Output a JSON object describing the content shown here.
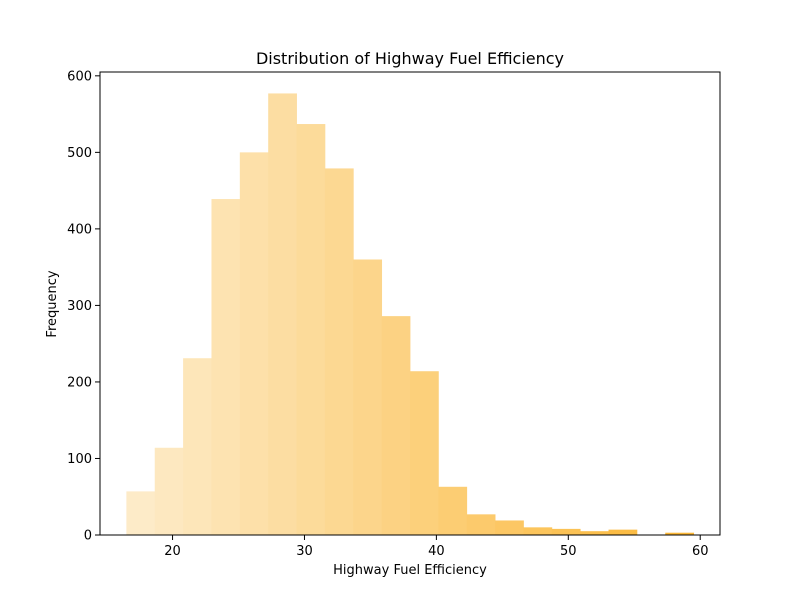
{
  "chart_data": {
    "type": "bar",
    "title": "Distribution of Highway Fuel Efficiency",
    "xlabel": "Highway Fuel Efficiency",
    "ylabel": "Frequency",
    "xlim": [
      14.5,
      61.5
    ],
    "ylim": [
      0,
      605
    ],
    "x_ticks": [
      20,
      30,
      40,
      50,
      60
    ],
    "y_ticks": [
      0,
      100,
      200,
      300,
      400,
      500,
      600
    ],
    "bin_width": 2.15,
    "bins": [
      {
        "start": 16.5,
        "value": 57
      },
      {
        "start": 18.65,
        "value": 114
      },
      {
        "start": 20.8,
        "value": 231
      },
      {
        "start": 22.95,
        "value": 439
      },
      {
        "start": 25.1,
        "value": 500
      },
      {
        "start": 27.25,
        "value": 577
      },
      {
        "start": 29.4,
        "value": 537
      },
      {
        "start": 31.55,
        "value": 479
      },
      {
        "start": 33.7,
        "value": 360
      },
      {
        "start": 35.85,
        "value": 286
      },
      {
        "start": 38.0,
        "value": 214
      },
      {
        "start": 40.15,
        "value": 63
      },
      {
        "start": 42.3,
        "value": 27
      },
      {
        "start": 44.45,
        "value": 19
      },
      {
        "start": 46.6,
        "value": 10
      },
      {
        "start": 48.75,
        "value": 8
      },
      {
        "start": 50.9,
        "value": 5
      },
      {
        "start": 53.05,
        "value": 7
      },
      {
        "start": 55.2,
        "value": 0
      },
      {
        "start": 57.35,
        "value": 3
      }
    ],
    "colors": {
      "start": "#fdebc8",
      "end": "#fbb736"
    },
    "grid": false,
    "legend": "none"
  }
}
